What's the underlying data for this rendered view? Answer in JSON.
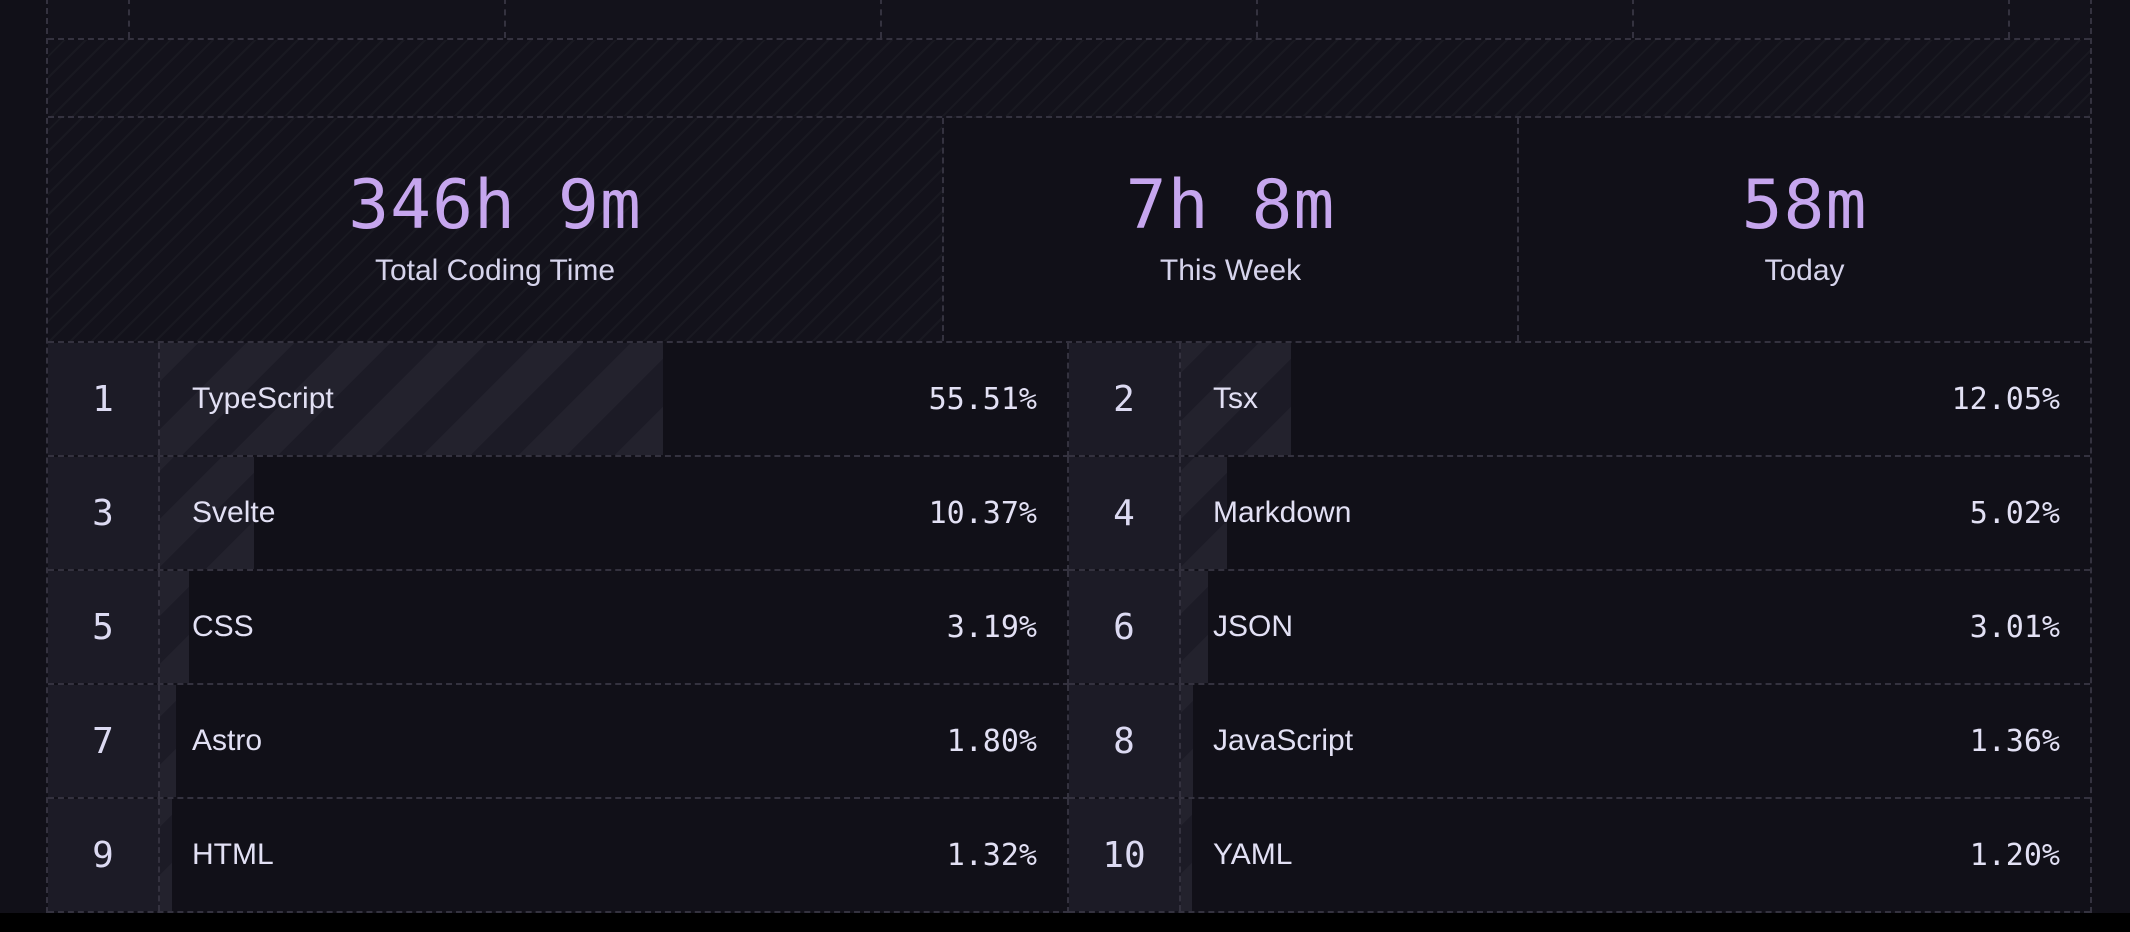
{
  "stats": [
    {
      "value": "346h 9m",
      "label": "Total Coding Time"
    },
    {
      "value": "7h 8m",
      "label": "This Week"
    },
    {
      "value": "58m",
      "label": "Today"
    }
  ],
  "languages": [
    {
      "rank": "1",
      "name": "TypeScript",
      "percent": "55.51%",
      "share": 55.51
    },
    {
      "rank": "2",
      "name": "Tsx",
      "percent": "12.05%",
      "share": 12.05
    },
    {
      "rank": "3",
      "name": "Svelte",
      "percent": "10.37%",
      "share": 10.37
    },
    {
      "rank": "4",
      "name": "Markdown",
      "percent": "5.02%",
      "share": 5.02
    },
    {
      "rank": "5",
      "name": "CSS",
      "percent": "3.19%",
      "share": 3.19
    },
    {
      "rank": "6",
      "name": "JSON",
      "percent": "3.01%",
      "share": 3.01
    },
    {
      "rank": "7",
      "name": "Astro",
      "percent": "1.80%",
      "share": 1.8
    },
    {
      "rank": "8",
      "name": "JavaScript",
      "percent": "1.36%",
      "share": 1.36
    },
    {
      "rank": "9",
      "name": "HTML",
      "percent": "1.32%",
      "share": 1.32
    },
    {
      "rank": "10",
      "name": "YAML",
      "percent": "1.20%",
      "share": 1.2
    }
  ]
}
